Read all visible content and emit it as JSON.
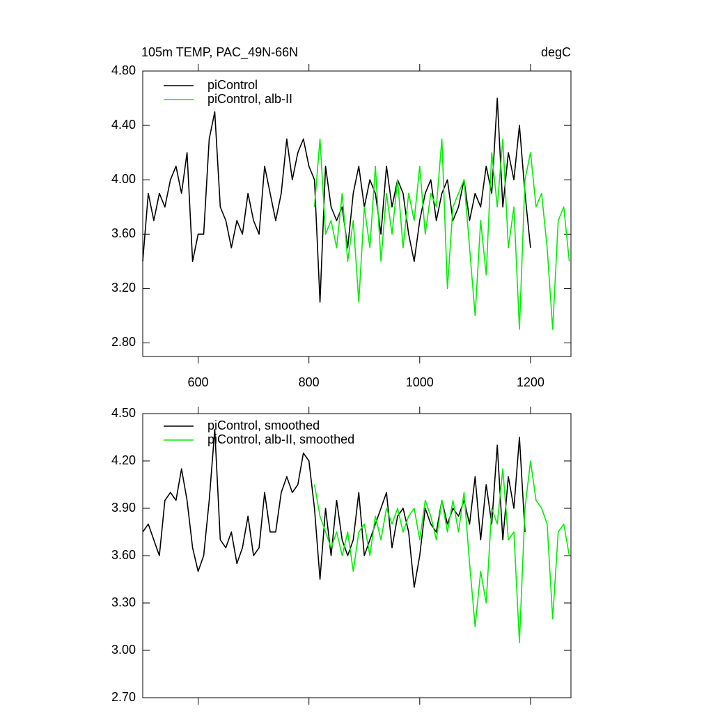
{
  "chart_data": [
    {
      "type": "line",
      "title": "105m TEMP, PAC_49N-66N",
      "units": "degC",
      "xlim": [
        500,
        1273
      ],
      "xticks": [
        600,
        800,
        1000,
        1200
      ],
      "xtick_labels": true,
      "ylim": [
        2.7,
        4.8
      ],
      "yticks": [
        {
          "value": 2.8,
          "label": "2.80"
        },
        {
          "value": 3.2,
          "label": "3.20"
        },
        {
          "value": 3.6,
          "label": "3.60"
        },
        {
          "value": 4.0,
          "label": "4.00"
        },
        {
          "value": 4.4,
          "label": "4.40"
        },
        {
          "value": 4.8,
          "label": "4.80"
        }
      ],
      "series": [
        {
          "name": "piControl",
          "color": "#000000",
          "x": [
            500,
            510,
            520,
            530,
            540,
            550,
            560,
            570,
            580,
            590,
            600,
            610,
            620,
            630,
            640,
            650,
            660,
            670,
            680,
            690,
            700,
            710,
            720,
            730,
            740,
            750,
            760,
            770,
            780,
            790,
            800,
            810,
            820,
            830,
            840,
            850,
            860,
            870,
            880,
            890,
            900,
            910,
            920,
            930,
            940,
            950,
            960,
            970,
            980,
            990,
            1000,
            1010,
            1020,
            1030,
            1040,
            1050,
            1060,
            1070,
            1080,
            1090,
            1100,
            1110,
            1120,
            1130,
            1140,
            1150,
            1160,
            1170,
            1180,
            1190,
            1200
          ],
          "values": [
            3.4,
            3.9,
            3.7,
            3.9,
            3.8,
            4.0,
            4.1,
            3.9,
            4.2,
            3.4,
            3.6,
            3.6,
            4.3,
            4.5,
            3.8,
            3.7,
            3.5,
            3.7,
            3.6,
            3.9,
            3.7,
            3.6,
            4.1,
            3.9,
            3.7,
            3.9,
            4.3,
            4.0,
            4.2,
            4.3,
            4.1,
            4.0,
            3.1,
            4.1,
            3.8,
            3.7,
            3.8,
            3.5,
            3.9,
            4.1,
            3.8,
            4.0,
            3.9,
            3.6,
            4.1,
            3.8,
            4.0,
            3.9,
            3.6,
            3.4,
            3.7,
            3.9,
            4.0,
            3.7,
            3.9,
            4.0,
            3.7,
            3.8,
            4.0,
            3.7,
            3.9,
            3.8,
            4.1,
            3.9,
            4.6,
            3.8,
            4.2,
            4.0,
            4.4,
            3.9,
            3.5
          ]
        },
        {
          "name": "piControl, alb-II",
          "color": "#00ee00",
          "x": [
            810,
            820,
            830,
            840,
            850,
            860,
            870,
            880,
            890,
            900,
            910,
            920,
            930,
            940,
            950,
            960,
            970,
            980,
            990,
            1000,
            1010,
            1020,
            1030,
            1040,
            1050,
            1060,
            1070,
            1080,
            1090,
            1100,
            1110,
            1120,
            1130,
            1140,
            1150,
            1160,
            1170,
            1180,
            1190,
            1200,
            1210,
            1220,
            1230,
            1240,
            1250,
            1260,
            1270
          ],
          "values": [
            3.8,
            4.3,
            3.6,
            3.7,
            3.5,
            3.9,
            3.4,
            3.7,
            3.1,
            3.8,
            3.5,
            4.1,
            3.4,
            3.9,
            3.6,
            4.0,
            3.5,
            3.9,
            3.7,
            4.1,
            3.6,
            3.9,
            3.8,
            4.3,
            3.2,
            3.8,
            3.9,
            4.0,
            3.5,
            3.0,
            3.7,
            3.3,
            4.2,
            3.8,
            4.3,
            3.5,
            3.8,
            2.9,
            4.0,
            4.2,
            3.8,
            3.9,
            3.5,
            2.9,
            3.7,
            3.8,
            3.4
          ]
        }
      ]
    },
    {
      "type": "line",
      "xlim": [
        500,
        1273
      ],
      "xticks": [
        600,
        800,
        1000,
        1200
      ],
      "xtick_labels": false,
      "ylim": [
        2.7,
        4.5
      ],
      "yticks": [
        {
          "value": 2.7,
          "label": "2.70"
        },
        {
          "value": 3.0,
          "label": "3.00"
        },
        {
          "value": 3.3,
          "label": "3.30"
        },
        {
          "value": 3.6,
          "label": "3.60"
        },
        {
          "value": 3.9,
          "label": "3.90"
        },
        {
          "value": 4.2,
          "label": "4.20"
        },
        {
          "value": 4.5,
          "label": "4.50"
        }
      ],
      "series": [
        {
          "name": "piControl, smoothed",
          "color": "#000000",
          "x": [
            500,
            510,
            520,
            530,
            540,
            550,
            560,
            570,
            580,
            590,
            600,
            610,
            620,
            630,
            640,
            650,
            660,
            670,
            680,
            690,
            700,
            710,
            720,
            730,
            740,
            750,
            760,
            770,
            780,
            790,
            800,
            810,
            820,
            830,
            840,
            850,
            860,
            870,
            880,
            890,
            900,
            910,
            920,
            930,
            940,
            950,
            960,
            970,
            980,
            990,
            1000,
            1010,
            1020,
            1030,
            1040,
            1050,
            1060,
            1070,
            1080,
            1090,
            1100,
            1110,
            1120,
            1130,
            1140,
            1150,
            1160,
            1170,
            1180,
            1190
          ],
          "values": [
            3.75,
            3.8,
            3.7,
            3.6,
            3.95,
            4.0,
            3.95,
            4.15,
            3.95,
            3.65,
            3.5,
            3.6,
            3.95,
            4.4,
            3.7,
            3.65,
            3.75,
            3.55,
            3.65,
            3.85,
            3.6,
            3.65,
            4.0,
            3.75,
            3.75,
            4.0,
            4.1,
            4.0,
            4.05,
            4.25,
            4.2,
            3.9,
            3.45,
            3.9,
            3.6,
            3.95,
            3.7,
            3.6,
            3.7,
            4.0,
            3.6,
            3.7,
            3.8,
            3.9,
            4.0,
            3.65,
            3.85,
            3.9,
            3.75,
            3.4,
            3.6,
            3.9,
            3.8,
            3.75,
            3.95,
            3.8,
            3.9,
            3.85,
            3.95,
            3.8,
            4.1,
            3.7,
            4.05,
            3.8,
            4.3,
            3.7,
            4.1,
            3.9,
            4.35,
            3.75
          ]
        },
        {
          "name": "piControl, alb-II, smoothed",
          "color": "#00ee00",
          "x": [
            810,
            820,
            830,
            840,
            850,
            860,
            870,
            880,
            890,
            900,
            910,
            920,
            930,
            940,
            950,
            960,
            970,
            980,
            990,
            1000,
            1010,
            1020,
            1030,
            1040,
            1050,
            1060,
            1070,
            1080,
            1090,
            1100,
            1110,
            1120,
            1130,
            1140,
            1150,
            1160,
            1170,
            1180,
            1190,
            1200,
            1210,
            1220,
            1230,
            1240,
            1250,
            1260,
            1270
          ],
          "values": [
            4.05,
            3.85,
            3.75,
            3.65,
            3.75,
            3.6,
            3.75,
            3.5,
            3.75,
            3.8,
            3.6,
            3.85,
            3.7,
            3.9,
            3.8,
            3.9,
            3.75,
            3.85,
            3.9,
            3.7,
            3.95,
            3.85,
            3.7,
            3.95,
            3.75,
            3.95,
            3.75,
            4.0,
            3.55,
            3.15,
            3.5,
            3.3,
            3.9,
            3.8,
            4.15,
            3.7,
            3.75,
            3.05,
            3.9,
            4.2,
            3.95,
            3.9,
            3.8,
            3.2,
            3.75,
            3.8,
            3.6
          ]
        }
      ]
    }
  ]
}
